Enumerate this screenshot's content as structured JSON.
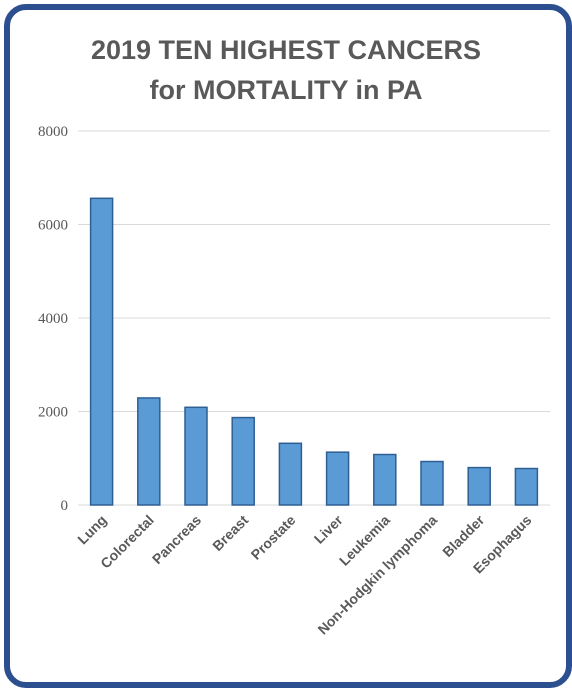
{
  "chart_data": {
    "type": "bar",
    "title_lines": [
      "2019 TEN HIGHEST CANCERS",
      "for MORTALITY in PA"
    ],
    "xlabel": "",
    "ylabel": "",
    "ylim": [
      0,
      8000
    ],
    "yticks": [
      "0",
      "2000",
      "4000",
      "6000",
      "8000"
    ],
    "grid": true,
    "categories": [
      "Lung",
      "Colorectal",
      "Pancreas",
      "Breast",
      "Prostate",
      "Liver",
      "Leukemia",
      "Non-Hodgkin lymphoma",
      "Bladder",
      "Esophagus"
    ],
    "values": [
      6560,
      2290,
      2090,
      1870,
      1320,
      1130,
      1080,
      930,
      800,
      780
    ],
    "colors": {
      "bar": "#5b9bd5",
      "bar_edge": "#2e5f93",
      "grid": "#d9d9d9",
      "frame": "#2c4f8f",
      "title": "#595959",
      "tick": "#595959"
    }
  }
}
